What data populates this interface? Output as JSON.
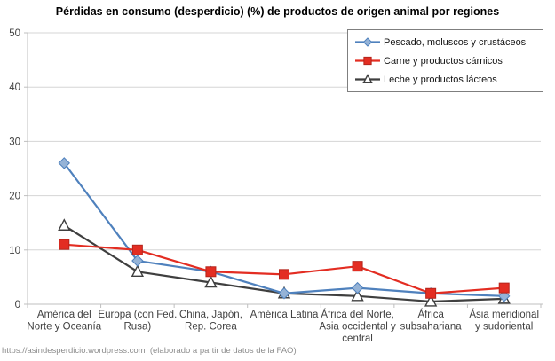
{
  "page": {
    "footer": "https://asindesperdicio.wordpress.com  (elaborado a partir de datos de la FAO)"
  },
  "chart_data": {
    "type": "line",
    "title": "Pérdidas en consumo (desperdicio) (%) de productos de origen animal por regiones",
    "categories": [
      {
        "label": "América del Norte y Oceanía",
        "lines": [
          "América del",
          "Norte y Oceanía"
        ]
      },
      {
        "label": "Europa (con Fed. Rusa)",
        "lines": [
          "Europa (con Fed.",
          "Rusa)"
        ]
      },
      {
        "label": "China, Japón, Rep. Corea",
        "lines": [
          "China, Japón,",
          "Rep. Corea"
        ]
      },
      {
        "label": "América Latina",
        "lines": [
          "América Latina"
        ]
      },
      {
        "label": "África del Norte, Asia occidental y central",
        "lines": [
          "África del Norte,",
          "Asia occidental y",
          "central"
        ]
      },
      {
        "label": "África subsahariana",
        "lines": [
          "África",
          "subsahariana"
        ]
      },
      {
        "label": "Ásia meridional y sudoriental",
        "lines": [
          "Ásia meridional",
          "y sudoriental"
        ]
      }
    ],
    "series": [
      {
        "name": "Pescado, moluscos y crustáceos",
        "marker": "diamond",
        "line_color": "#4F81BD",
        "marker_fill": "#95B3D7",
        "marker_stroke": "#4F81BD",
        "values": [
          26,
          8,
          6,
          2,
          3,
          2,
          1.5
        ]
      },
      {
        "name": "Carne y productos cárnicos",
        "marker": "square",
        "line_color": "#E32D22",
        "marker_fill": "#E32D22",
        "marker_stroke": "#B5241B",
        "values": [
          11,
          10,
          6,
          5.5,
          7,
          2,
          3
        ]
      },
      {
        "name": "Leche y productos lácteos",
        "marker": "triangle",
        "line_color": "#3F3F3F",
        "marker_fill": "#FFFFFF",
        "marker_stroke": "#3F3F3F",
        "values": [
          14.5,
          6,
          4,
          2,
          1.5,
          0.5,
          1
        ]
      }
    ],
    "ylim": [
      0,
      50
    ],
    "ytick_step": 10,
    "grid": true,
    "legend_position": "top-right"
  },
  "colors": {
    "background": "#FFFFFF",
    "grid": "#D5D5D5",
    "axis": "#BFBFBF",
    "tick_label": "#404040",
    "legend_border": "#7F7F7F",
    "footer_text": "#8D8D8D"
  }
}
